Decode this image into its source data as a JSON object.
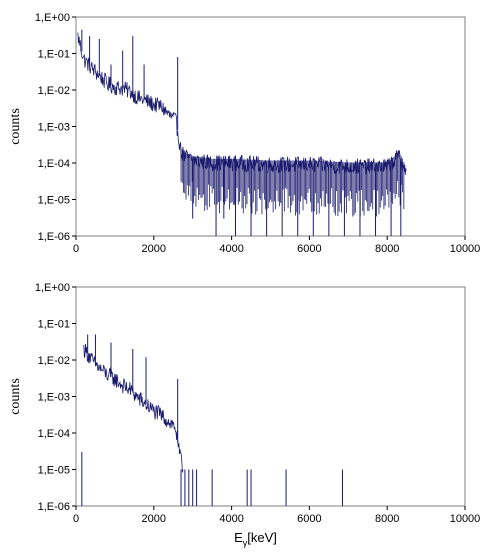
{
  "chart_data": [
    {
      "type": "line",
      "ylabel": "counts",
      "xlabel": "",
      "x_tick_labels": [
        "0",
        "2000",
        "4000",
        "6000",
        "8000",
        "10000"
      ],
      "y_tick_labels": [
        "1,E+00",
        "1,E-01",
        "1,E-02",
        "1,E-03",
        "1,E-04",
        "1,E-05",
        "1,E-06"
      ],
      "xlim": [
        0,
        10000
      ],
      "ylim": [
        1e-06,
        1
      ],
      "y_scale": "log",
      "grid": false,
      "line_color": "#1a1a6e",
      "series": [
        {
          "x": [
            50,
            200,
            400,
            600,
            800,
            1000,
            1200,
            1400,
            1600,
            1800,
            2000,
            2200,
            2400,
            2550,
            2614,
            2700,
            2800,
            3000,
            3500,
            4000,
            5000,
            6000,
            7000,
            8000,
            8300,
            8400,
            8500
          ],
          "y": [
            0.3,
            0.07,
            0.04,
            0.025,
            0.015,
            0.012,
            0.011,
            0.009,
            0.006,
            0.005,
            0.004,
            0.0035,
            0.002,
            0.0015,
            0.0008,
            0.0002,
            0.00015,
            0.00012,
            0.0001,
            0.0001,
            9e-05,
            9e-05,
            8e-05,
            8e-05,
            0.00015,
            0.0001,
            5e-05
          ]
        }
      ],
      "peaks": [
        {
          "x": 150,
          "y": 0.45
        },
        {
          "x": 350,
          "y": 0.3
        },
        {
          "x": 600,
          "y": 0.25
        },
        {
          "x": 900,
          "y": 0.05
        },
        {
          "x": 1200,
          "y": 0.12
        },
        {
          "x": 1460,
          "y": 0.3
        },
        {
          "x": 1750,
          "y": 0.05
        },
        {
          "x": 2614,
          "y": 0.08
        }
      ],
      "dips": [
        {
          "x": 3000,
          "y": 3e-06
        },
        {
          "x": 3600,
          "y": 1e-06
        },
        {
          "x": 3800,
          "y": 3e-06
        },
        {
          "x": 4100,
          "y": 1e-06
        },
        {
          "x": 4500,
          "y": 1e-06
        },
        {
          "x": 4900,
          "y": 1e-06
        },
        {
          "x": 5300,
          "y": 1e-06
        },
        {
          "x": 5700,
          "y": 1e-06
        },
        {
          "x": 6100,
          "y": 1e-06
        },
        {
          "x": 6500,
          "y": 1e-06
        },
        {
          "x": 6900,
          "y": 1e-06
        },
        {
          "x": 7300,
          "y": 1e-06
        },
        {
          "x": 7700,
          "y": 1e-06
        },
        {
          "x": 8100,
          "y": 1e-06
        },
        {
          "x": 8350,
          "y": 1e-06
        }
      ]
    },
    {
      "type": "line",
      "ylabel": "counts",
      "xlabel": "Eγ [keV]",
      "x_tick_labels": [
        "0",
        "2000",
        "4000",
        "6000",
        "8000",
        "10000"
      ],
      "y_tick_labels": [
        "1,E+00",
        "1,E-01",
        "1,E-02",
        "1,E-03",
        "1,E-04",
        "1,E-05",
        "1,E-06"
      ],
      "xlim": [
        0,
        10000
      ],
      "ylim": [
        1e-06,
        1
      ],
      "y_scale": "log",
      "grid": false,
      "line_color": "#1a1a6e",
      "series": [
        {
          "x": [
            200,
            300,
            400,
            600,
            800,
            1000,
            1200,
            1400,
            1600,
            1800,
            2000,
            2200,
            2400,
            2550,
            2650,
            2750
          ],
          "y": [
            0.02,
            0.015,
            0.01,
            0.006,
            0.004,
            0.003,
            0.002,
            0.0015,
            0.0009,
            0.0006,
            0.0004,
            0.0003,
            0.0002,
            0.00015,
            3e-05,
            1e-05
          ]
        }
      ],
      "peaks": [
        {
          "x": 300,
          "y": 0.05
        },
        {
          "x": 500,
          "y": 0.05
        },
        {
          "x": 900,
          "y": 0.03
        },
        {
          "x": 1460,
          "y": 0.02
        },
        {
          "x": 1800,
          "y": 0.012
        },
        {
          "x": 2614,
          "y": 0.003
        }
      ],
      "sparse_lines": [
        {
          "x": 150,
          "y": 3e-05
        },
        {
          "x": 2700,
          "y": 1e-05
        },
        {
          "x": 2800,
          "y": 1e-05
        },
        {
          "x": 2900,
          "y": 1e-05
        },
        {
          "x": 3000,
          "y": 1e-05
        },
        {
          "x": 3100,
          "y": 1e-05
        },
        {
          "x": 3500,
          "y": 1e-05
        },
        {
          "x": 4400,
          "y": 1e-05
        },
        {
          "x": 4500,
          "y": 1e-05
        },
        {
          "x": 5400,
          "y": 1e-05
        },
        {
          "x": 6850,
          "y": 1e-05
        }
      ]
    }
  ]
}
